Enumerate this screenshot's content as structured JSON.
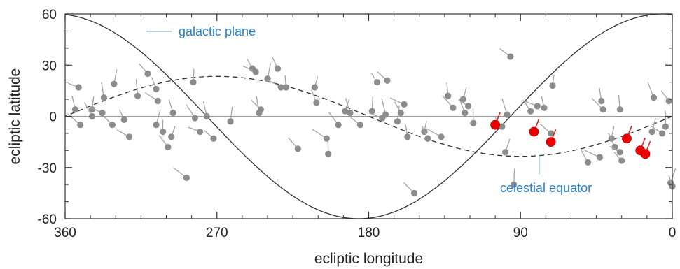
{
  "chart_data": {
    "type": "scatter",
    "xlabel": "ecliptic longitude",
    "ylabel": "ecliptic latitude",
    "xlim": [
      360,
      0
    ],
    "ylim": [
      -60,
      60
    ],
    "x_ticks": [
      360,
      270,
      180,
      90,
      0
    ],
    "y_ticks": [
      60,
      30,
      0,
      -30,
      -60
    ],
    "annotations": [
      {
        "text": "galactic plane",
        "color": "#2a7fc9"
      },
      {
        "text": "celestial equator",
        "color": "#2a7fc9"
      }
    ],
    "curves": [
      {
        "name": "galactic plane",
        "style": "solid",
        "color": "#333333"
      },
      {
        "name": "celestial equator",
        "style": "dashed",
        "color": "#333333"
      }
    ],
    "gray_color": "#8c8c8c",
    "red_color": "#ee0000",
    "points_gray": [
      [
        352,
        17
      ],
      [
        354,
        4
      ],
      [
        351,
        -5
      ],
      [
        344,
        4
      ],
      [
        344,
        0
      ],
      [
        338,
        2
      ],
      [
        337,
        11
      ],
      [
        332,
        -5
      ],
      [
        331,
        19
      ],
      [
        325,
        -2
      ],
      [
        322,
        -12
      ],
      [
        317,
        12
      ],
      [
        311,
        25
      ],
      [
        306,
        -5
      ],
      [
        306,
        16
      ],
      [
        305,
        9
      ],
      [
        302,
        -9
      ],
      [
        299,
        -18
      ],
      [
        297,
        -12
      ],
      [
        296,
        2
      ],
      [
        288,
        -36
      ],
      [
        284,
        20
      ],
      [
        283,
        -1
      ],
      [
        280,
        -9
      ],
      [
        276,
        0
      ],
      [
        272,
        -13
      ],
      [
        262,
        -3
      ],
      [
        249,
        28
      ],
      [
        247,
        26
      ],
      [
        245,
        2
      ],
      [
        244,
        4
      ],
      [
        240,
        22
      ],
      [
        234,
        28
      ],
      [
        232,
        17
      ],
      [
        229,
        17
      ],
      [
        222,
        -19
      ],
      [
        212,
        17
      ],
      [
        211,
        8
      ],
      [
        205,
        -13
      ],
      [
        204,
        -22
      ],
      [
        198,
        -5
      ],
      [
        194,
        3
      ],
      [
        191,
        2
      ],
      [
        185,
        -5
      ],
      [
        178,
        3
      ],
      [
        175,
        20
      ],
      [
        172,
        -1
      ],
      [
        170,
        1
      ],
      [
        169,
        21
      ],
      [
        163,
        -3
      ],
      [
        161,
        2
      ],
      [
        159,
        7
      ],
      [
        157,
        -12
      ],
      [
        153,
        -45
      ],
      [
        147,
        -9
      ],
      [
        145,
        -13
      ],
      [
        137,
        -12
      ],
      [
        133,
        12
      ],
      [
        130,
        5
      ],
      [
        124,
        10
      ],
      [
        123,
        2
      ],
      [
        121,
        6
      ],
      [
        118,
        -4
      ],
      [
        101,
        -6
      ],
      [
        99,
        -21
      ],
      [
        98,
        1
      ],
      [
        96,
        35
      ],
      [
        94,
        -40
      ],
      [
        84,
        3
      ],
      [
        80,
        6
      ],
      [
        76,
        5
      ],
      [
        72,
        -10
      ],
      [
        71,
        18
      ],
      [
        50,
        -27
      ],
      [
        43,
        -24
      ],
      [
        42,
        9
      ],
      [
        41,
        4
      ],
      [
        36,
        -13
      ],
      [
        34,
        -18
      ],
      [
        31,
        -21
      ],
      [
        31,
        4
      ],
      [
        30,
        -26
      ],
      [
        12,
        -9
      ],
      [
        11,
        11
      ],
      [
        6,
        -10
      ],
      [
        4,
        -6
      ],
      [
        2,
        9
      ],
      [
        1,
        -39
      ],
      [
        0,
        -41
      ]
    ],
    "points_red": [
      [
        105,
        -5
      ],
      [
        82,
        -9
      ],
      [
        72,
        -15
      ],
      [
        27,
        -13
      ],
      [
        19,
        -20
      ],
      [
        16,
        -22
      ]
    ]
  }
}
